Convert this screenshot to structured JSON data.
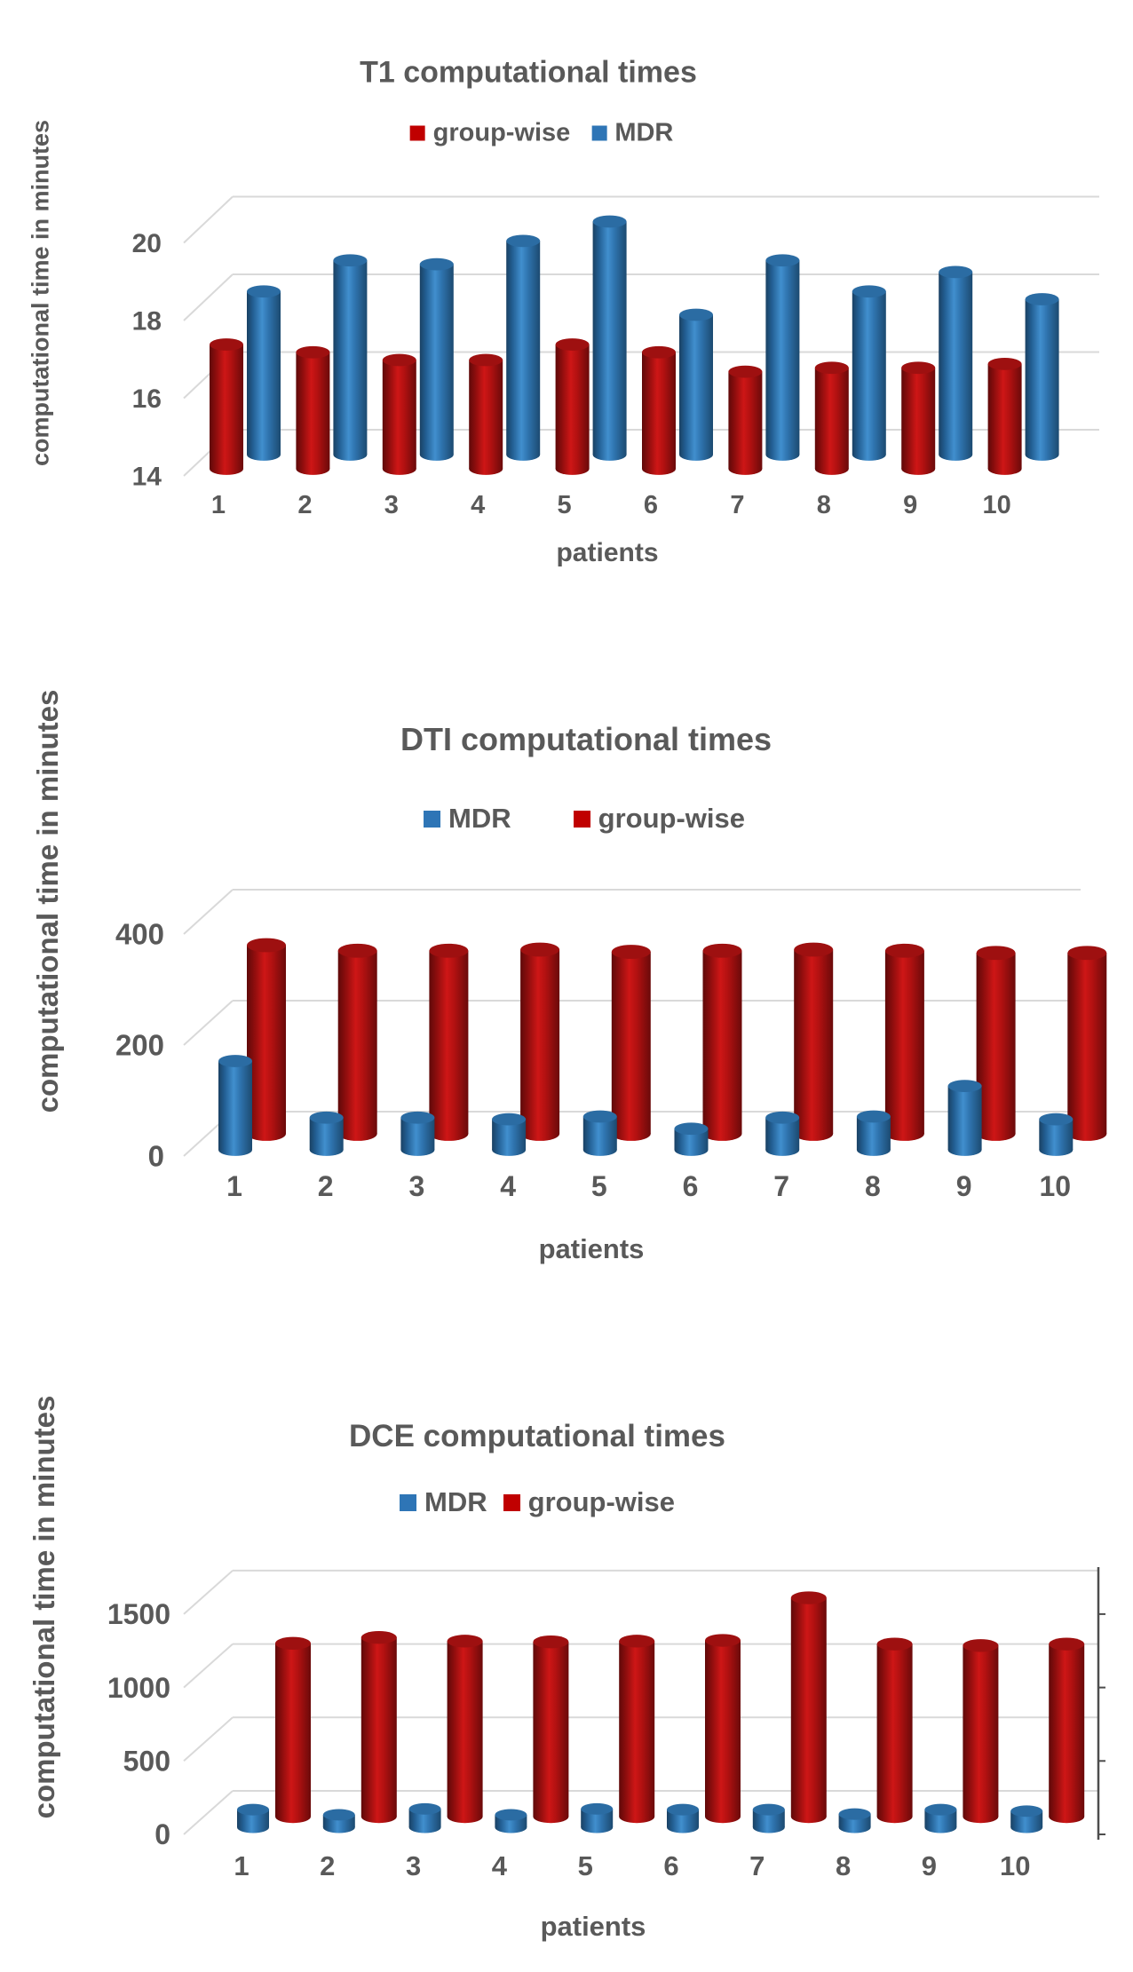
{
  "figure": {
    "description_colors": {
      "group-wise": "#C00000",
      "MDR": "#2E75B6",
      "axis_text": "#595959",
      "title_text": "#595959",
      "gridline": "#D9D9D9"
    }
  },
  "chart_data": [
    {
      "type": "bar",
      "variant": "3d-cylinder",
      "title": "T1 computational times",
      "ylabel": "computational time in minutes",
      "xlabel": "patients",
      "categories": [
        "1",
        "2",
        "3",
        "4",
        "5",
        "6",
        "7",
        "8",
        "9",
        "10"
      ],
      "y_ticks": [
        14,
        16,
        18,
        20
      ],
      "ylim": [
        14,
        21
      ],
      "grid": true,
      "legend_position": "top-center",
      "legend": [
        {
          "label": "group-wise",
          "color": "#C00000"
        },
        {
          "label": "MDR",
          "color": "#2E75B6"
        }
      ],
      "series": [
        {
          "name": "group-wise",
          "color": "#C00000",
          "depth": "front",
          "values": [
            17.2,
            17.0,
            16.8,
            16.8,
            17.2,
            17.0,
            16.5,
            16.6,
            16.6,
            16.7
          ]
        },
        {
          "name": "MDR",
          "color": "#2E75B6",
          "depth": "back",
          "values": [
            18.2,
            19.0,
            18.9,
            19.5,
            20.0,
            17.6,
            19.0,
            18.2,
            18.7,
            18.0
          ]
        }
      ]
    },
    {
      "type": "bar",
      "variant": "3d-cylinder",
      "title": "DTI computational times",
      "ylabel": "computational time in minutes",
      "xlabel": "patients",
      "categories": [
        "1",
        "2",
        "3",
        "4",
        "5",
        "6",
        "7",
        "8",
        "9",
        "10"
      ],
      "y_ticks": [
        0,
        200,
        400
      ],
      "ylim": [
        0,
        450
      ],
      "grid": true,
      "legend_position": "top-center",
      "legend": [
        {
          "label": "MDR",
          "color": "#2E75B6"
        },
        {
          "label": "group-wise",
          "color": "#C00000"
        }
      ],
      "series": [
        {
          "name": "MDR",
          "color": "#2E75B6",
          "depth": "front",
          "values": [
            160,
            58,
            58,
            55,
            60,
            38,
            58,
            60,
            115,
            55
          ]
        },
        {
          "name": "group-wise",
          "color": "#C00000",
          "depth": "back",
          "values": [
            340,
            330,
            330,
            332,
            328,
            330,
            332,
            330,
            326,
            326
          ]
        }
      ]
    },
    {
      "type": "bar",
      "variant": "3d-cylinder",
      "title": "DCE computational times",
      "ylabel": "computational time in minutes",
      "xlabel": "patients",
      "categories": [
        "1",
        "2",
        "3",
        "4",
        "5",
        "6",
        "7",
        "8",
        "9",
        "10"
      ],
      "y_ticks": [
        0,
        500,
        1000,
        1500
      ],
      "ylim": [
        0,
        1600
      ],
      "grid": true,
      "right_axis_line": true,
      "legend_position": "top-center",
      "legend": [
        {
          "label": "MDR",
          "color": "#2E75B6"
        },
        {
          "label": "group-wise",
          "color": "#C00000"
        }
      ],
      "series": [
        {
          "name": "MDR",
          "color": "#2E75B6",
          "depth": "front",
          "values": [
            120,
            85,
            125,
            85,
            125,
            120,
            120,
            90,
            120,
            110
          ]
        },
        {
          "name": "group-wise",
          "color": "#C00000",
          "depth": "back",
          "values": [
            1180,
            1220,
            1195,
            1190,
            1195,
            1200,
            1490,
            1175,
            1165,
            1175
          ]
        }
      ]
    }
  ]
}
